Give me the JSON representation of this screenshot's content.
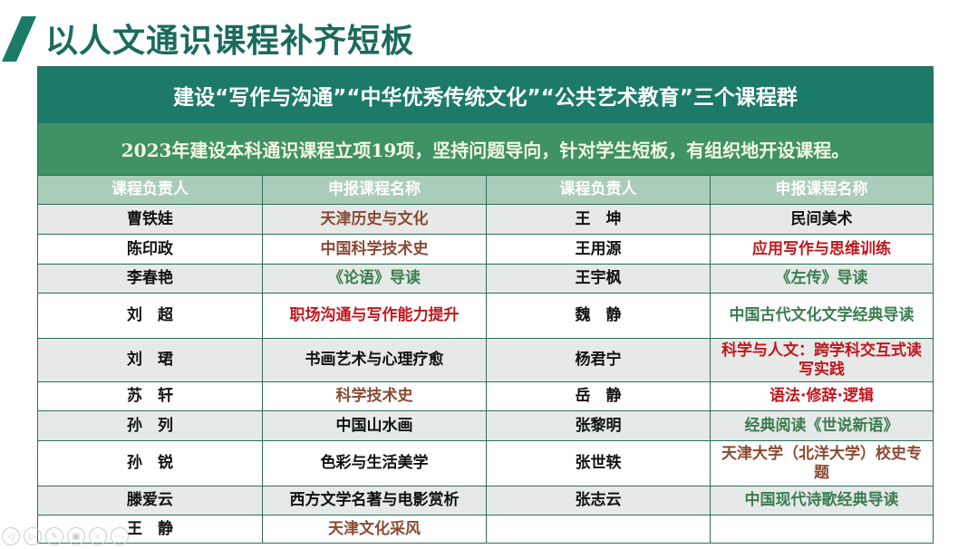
{
  "title": "以人文通识课程补齐短板",
  "banner": "建设“写作与沟通”“中华优秀传统文化”“公共艺术教育”三个课程群",
  "subtitle": "2023年建设本科通识课程立项19项，坚持问题导向，针对学生短板，有组织地开设课程。",
  "headers": [
    "课程负责人",
    "申报课程名称",
    "课程负责人",
    "申报课程名称"
  ],
  "colors": {
    "brown": "#8b4a32",
    "red": "#c0161d",
    "green": "#3a7d50",
    "dark_teal": "#1b7a68",
    "mid_green": "#3f9166"
  },
  "rows": [
    {
      "l_name": "曹铁娃",
      "l_course": "天津历史与文化",
      "l_color": "brown",
      "r_name": "王　坤",
      "r_course": "民间美术",
      "r_color": "black"
    },
    {
      "l_name": "陈印政",
      "l_course": "中国科学技术史",
      "l_color": "brown",
      "r_name": "王用源",
      "r_course": "应用写作与思维训练",
      "r_color": "red"
    },
    {
      "l_name": "李春艳",
      "l_course": "《论语》导读",
      "l_color": "green",
      "r_name": "王宇枫",
      "r_course": "《左传》导读",
      "r_color": "green"
    },
    {
      "l_name": "刘　超",
      "l_course": "职场沟通与写作能力提升",
      "l_color": "red",
      "r_name": "魏　静",
      "r_course": "中国古代文化文学经典导读",
      "r_color": "green"
    },
    {
      "l_name": "刘　珺",
      "l_course": "书画艺术与心理疗愈",
      "l_color": "black",
      "r_name": "杨君宁",
      "r_course": "科学与人文：跨学科交互式读写实践",
      "r_color": "red"
    },
    {
      "l_name": "苏　轩",
      "l_course": "科学技术史",
      "l_color": "brown",
      "r_name": "岳　静",
      "r_course": "语法·修辞·逻辑",
      "r_color": "red"
    },
    {
      "l_name": "孙　列",
      "l_course": "中国山水画",
      "l_color": "black",
      "r_name": "张黎明",
      "r_course": "经典阅读《世说新语》",
      "r_color": "green"
    },
    {
      "l_name": "孙　锐",
      "l_course": "色彩与生活美学",
      "l_color": "black",
      "r_name": "张世轶",
      "r_course": "天津大学（北洋大学）校史专题",
      "r_color": "brown"
    },
    {
      "l_name": "滕爱云",
      "l_course": "西方文学名著与电影赏析",
      "l_color": "black",
      "r_name": "张志云",
      "r_course": "中国现代诗歌经典导读",
      "r_color": "green"
    },
    {
      "l_name": "王　静",
      "l_course": "天津文化采风",
      "l_color": "brown",
      "r_name": "",
      "r_course": "",
      "r_color": "black"
    }
  ],
  "controls": [
    "prev-icon",
    "next-icon",
    "pen-icon",
    "screen-icon",
    "zoom-icon",
    "more-icon"
  ]
}
